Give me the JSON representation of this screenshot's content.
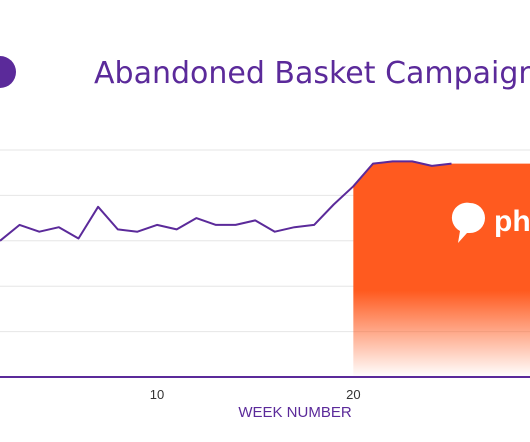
{
  "chart_data": {
    "type": "line",
    "title": "Abandoned Basket Campaign",
    "xlabel": "WEEK NUMBER",
    "ylabel": "",
    "x_ticks": [
      10,
      20
    ],
    "xlim": [
      2,
      29
    ],
    "ylim": [
      0,
      100
    ],
    "grid": true,
    "series": [
      {
        "x": [
          2,
          3,
          4,
          5,
          6,
          7,
          8,
          9,
          10,
          11,
          12,
          13,
          14,
          15,
          16,
          17,
          18,
          19,
          20,
          21,
          22,
          23,
          24,
          25
        ],
        "values": [
          60,
          67,
          64,
          66,
          61,
          75,
          65,
          64,
          67,
          65,
          70,
          67,
          67,
          69,
          64,
          66,
          67,
          76,
          84,
          94,
          95,
          95,
          93,
          94
        ]
      }
    ],
    "highlight_start_x": 20,
    "brand": {
      "logo_text": "ph",
      "color": "#ff5a1f"
    },
    "colors": {
      "title": "#5b2a9a",
      "line": "#5b2a9a",
      "axis": "#5b2a9a",
      "xlabel": "#5b2a9a",
      "grid": "#e6e6e6",
      "tick": "#333333"
    }
  }
}
